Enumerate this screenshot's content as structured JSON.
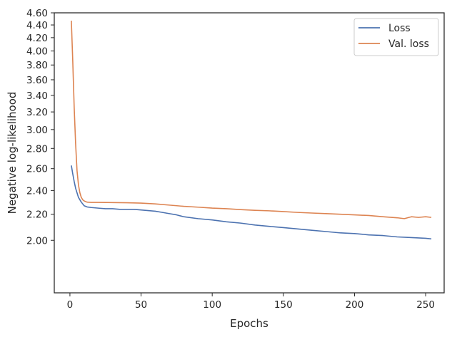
{
  "chart_data": {
    "type": "line",
    "title": "",
    "xlabel": "Epochs",
    "ylabel": "Negative log-likelihood",
    "y_scale": "log",
    "xlim": [
      -11,
      263
    ],
    "ylim": [
      1.65,
      4.6
    ],
    "x_ticks": [
      0,
      50,
      100,
      150,
      200,
      250
    ],
    "y_ticks": [
      2.0,
      2.2,
      2.4,
      2.6,
      2.8,
      3.0,
      3.2,
      3.4,
      3.6,
      3.8,
      4.0,
      4.2,
      4.4,
      4.6
    ],
    "x_tick_labels": [
      "0",
      "50",
      "100",
      "150",
      "200",
      "250"
    ],
    "y_tick_labels": [
      "2.00",
      "2.20",
      "2.40",
      "2.60",
      "2.80",
      "3.00",
      "3.20",
      "3.40",
      "3.60",
      "3.80",
      "4.00",
      "4.20",
      "4.40",
      "4.60"
    ],
    "grid": false,
    "legend_position": "top-right",
    "series": [
      {
        "name": "Loss",
        "color": "#4c72b0",
        "x": [
          1,
          2,
          3,
          4,
          5,
          6,
          8,
          10,
          12,
          15,
          20,
          25,
          30,
          35,
          40,
          45,
          50,
          55,
          60,
          65,
          70,
          75,
          80,
          90,
          100,
          110,
          120,
          130,
          140,
          150,
          160,
          170,
          180,
          190,
          200,
          210,
          220,
          230,
          240,
          250,
          254
        ],
        "y": [
          2.63,
          2.55,
          2.48,
          2.42,
          2.38,
          2.34,
          2.3,
          2.27,
          2.26,
          2.255,
          2.25,
          2.245,
          2.245,
          2.24,
          2.24,
          2.24,
          2.235,
          2.23,
          2.225,
          2.215,
          2.205,
          2.195,
          2.18,
          2.165,
          2.155,
          2.14,
          2.13,
          2.115,
          2.105,
          2.095,
          2.085,
          2.075,
          2.065,
          2.055,
          2.05,
          2.04,
          2.035,
          2.025,
          2.02,
          2.015,
          2.01
        ]
      },
      {
        "name": "Val. loss",
        "color": "#dd8452",
        "x": [
          1,
          2,
          3,
          4,
          5,
          6,
          7,
          8,
          9,
          10,
          12,
          15,
          20,
          30,
          40,
          50,
          60,
          70,
          80,
          90,
          100,
          110,
          120,
          130,
          140,
          150,
          160,
          170,
          180,
          190,
          200,
          210,
          220,
          230,
          235,
          240,
          245,
          250,
          254
        ],
        "y": [
          4.47,
          3.85,
          3.25,
          2.85,
          2.58,
          2.45,
          2.38,
          2.34,
          2.32,
          2.31,
          2.3,
          2.298,
          2.298,
          2.296,
          2.295,
          2.292,
          2.285,
          2.275,
          2.265,
          2.258,
          2.25,
          2.245,
          2.238,
          2.232,
          2.228,
          2.222,
          2.215,
          2.21,
          2.205,
          2.2,
          2.195,
          2.19,
          2.18,
          2.172,
          2.165,
          2.18,
          2.175,
          2.18,
          2.175
        ]
      }
    ]
  }
}
